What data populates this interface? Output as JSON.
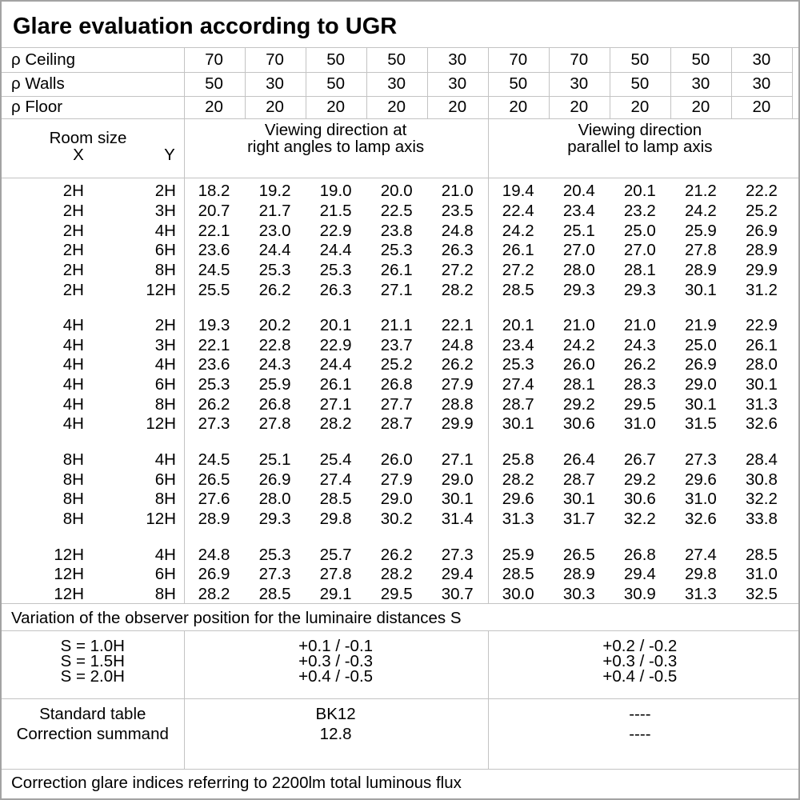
{
  "title": "Glare evaluation according to UGR",
  "rho_rows": [
    {
      "label": "ρ Ceiling",
      "values": [
        "70",
        "70",
        "50",
        "50",
        "30",
        "70",
        "70",
        "50",
        "50",
        "30"
      ]
    },
    {
      "label": "ρ Walls",
      "values": [
        "50",
        "30",
        "50",
        "30",
        "30",
        "50",
        "30",
        "50",
        "30",
        "30"
      ]
    },
    {
      "label": "ρ Floor",
      "values": [
        "20",
        "20",
        "20",
        "20",
        "20",
        "20",
        "20",
        "20",
        "20",
        "20"
      ]
    }
  ],
  "header": {
    "room_size": "Room size",
    "x": "X",
    "y": "Y",
    "group_a_line1": "Viewing direction at",
    "group_a_line2": "right angles to lamp axis",
    "group_b_line1": "Viewing direction",
    "group_b_line2": "parallel to lamp axis"
  },
  "ugr_rows": [
    {
      "x": "2H",
      "y": "2H",
      "v": [
        "18.2",
        "19.2",
        "19.0",
        "20.0",
        "21.0",
        "19.4",
        "20.4",
        "20.1",
        "21.2",
        "22.2"
      ]
    },
    {
      "x": "2H",
      "y": "3H",
      "v": [
        "20.7",
        "21.7",
        "21.5",
        "22.5",
        "23.5",
        "22.4",
        "23.4",
        "23.2",
        "24.2",
        "25.2"
      ]
    },
    {
      "x": "2H",
      "y": "4H",
      "v": [
        "22.1",
        "23.0",
        "22.9",
        "23.8",
        "24.8",
        "24.2",
        "25.1",
        "25.0",
        "25.9",
        "26.9"
      ]
    },
    {
      "x": "2H",
      "y": "6H",
      "v": [
        "23.6",
        "24.4",
        "24.4",
        "25.3",
        "26.3",
        "26.1",
        "27.0",
        "27.0",
        "27.8",
        "28.9"
      ]
    },
    {
      "x": "2H",
      "y": "8H",
      "v": [
        "24.5",
        "25.3",
        "25.3",
        "26.1",
        "27.2",
        "27.2",
        "28.0",
        "28.1",
        "28.9",
        "29.9"
      ]
    },
    {
      "x": "2H",
      "y": "12H",
      "v": [
        "25.5",
        "26.2",
        "26.3",
        "27.1",
        "28.2",
        "28.5",
        "29.3",
        "29.3",
        "30.1",
        "31.2"
      ]
    },
    {
      "x": "4H",
      "y": "2H",
      "v": [
        "19.3",
        "20.2",
        "20.1",
        "21.1",
        "22.1",
        "20.1",
        "21.0",
        "21.0",
        "21.9",
        "22.9"
      ]
    },
    {
      "x": "4H",
      "y": "3H",
      "v": [
        "22.1",
        "22.8",
        "22.9",
        "23.7",
        "24.8",
        "23.4",
        "24.2",
        "24.3",
        "25.0",
        "26.1"
      ]
    },
    {
      "x": "4H",
      "y": "4H",
      "v": [
        "23.6",
        "24.3",
        "24.4",
        "25.2",
        "26.2",
        "25.3",
        "26.0",
        "26.2",
        "26.9",
        "28.0"
      ]
    },
    {
      "x": "4H",
      "y": "6H",
      "v": [
        "25.3",
        "25.9",
        "26.1",
        "26.8",
        "27.9",
        "27.4",
        "28.1",
        "28.3",
        "29.0",
        "30.1"
      ]
    },
    {
      "x": "4H",
      "y": "8H",
      "v": [
        "26.2",
        "26.8",
        "27.1",
        "27.7",
        "28.8",
        "28.7",
        "29.2",
        "29.5",
        "30.1",
        "31.3"
      ]
    },
    {
      "x": "4H",
      "y": "12H",
      "v": [
        "27.3",
        "27.8",
        "28.2",
        "28.7",
        "29.9",
        "30.1",
        "30.6",
        "31.0",
        "31.5",
        "32.6"
      ]
    },
    {
      "x": "8H",
      "y": "4H",
      "v": [
        "24.5",
        "25.1",
        "25.4",
        "26.0",
        "27.1",
        "25.8",
        "26.4",
        "26.7",
        "27.3",
        "28.4"
      ]
    },
    {
      "x": "8H",
      "y": "6H",
      "v": [
        "26.5",
        "26.9",
        "27.4",
        "27.9",
        "29.0",
        "28.2",
        "28.7",
        "29.2",
        "29.6",
        "30.8"
      ]
    },
    {
      "x": "8H",
      "y": "8H",
      "v": [
        "27.6",
        "28.0",
        "28.5",
        "29.0",
        "30.1",
        "29.6",
        "30.1",
        "30.6",
        "31.0",
        "32.2"
      ]
    },
    {
      "x": "8H",
      "y": "12H",
      "v": [
        "28.9",
        "29.3",
        "29.8",
        "30.2",
        "31.4",
        "31.3",
        "31.7",
        "32.2",
        "32.6",
        "33.8"
      ]
    },
    {
      "x": "12H",
      "y": "4H",
      "v": [
        "24.8",
        "25.3",
        "25.7",
        "26.2",
        "27.3",
        "25.9",
        "26.5",
        "26.8",
        "27.4",
        "28.5"
      ]
    },
    {
      "x": "12H",
      "y": "6H",
      "v": [
        "26.9",
        "27.3",
        "27.8",
        "28.2",
        "29.4",
        "28.5",
        "28.9",
        "29.4",
        "29.8",
        "31.0"
      ]
    },
    {
      "x": "12H",
      "y": "8H",
      "v": [
        "28.2",
        "28.5",
        "29.1",
        "29.5",
        "30.7",
        "30.0",
        "30.3",
        "30.9",
        "31.3",
        "32.5"
      ]
    }
  ],
  "variation_note": "Variation of the observer position for the luminaire distances S",
  "spacing_rows": [
    {
      "label": "S = 1.0H",
      "a": "+0.1 / -0.1",
      "b": "+0.2 / -0.2"
    },
    {
      "label": "S = 1.5H",
      "a": "+0.3 / -0.3",
      "b": "+0.3 / -0.3"
    },
    {
      "label": "S = 2.0H",
      "a": "+0.4 / -0.5",
      "b": "+0.4 / -0.5"
    }
  ],
  "standard_rows": [
    {
      "label": "Standard table",
      "a": "BK12",
      "b": "----"
    },
    {
      "label": "Correction summand",
      "a": "12.8",
      "b": "----"
    }
  ],
  "footer_note": "Correction glare indices referring to 2200lm total luminous flux",
  "colors": {
    "line": "#c3c3c3",
    "border": "#a3a3a3",
    "text": "#000000",
    "background": "#ffffff"
  }
}
